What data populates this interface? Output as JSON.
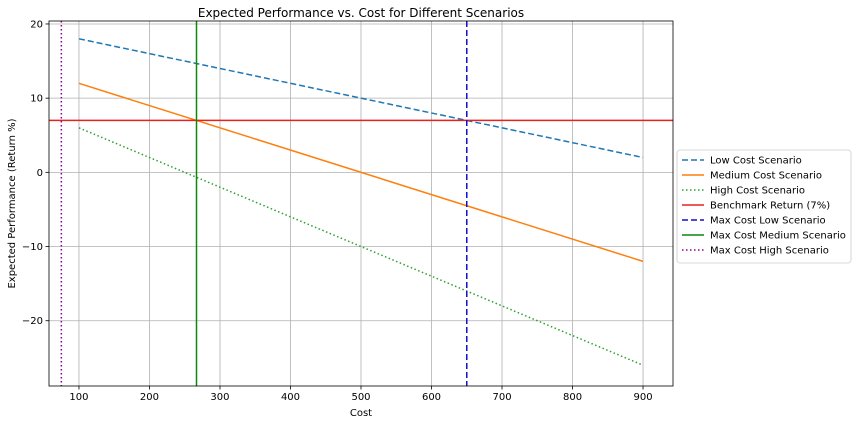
{
  "chart_data": {
    "type": "line",
    "title": "Expected Performance vs. Cost for Different Scenarios",
    "xlabel": "Cost",
    "ylabel": "Expected Performance (Return %)",
    "xlim": [
      57.5,
      942.5
    ],
    "ylim": [
      -28.8,
      20.4
    ],
    "xticks": [
      100,
      200,
      300,
      400,
      500,
      600,
      700,
      800,
      900
    ],
    "yticks": [
      -20,
      -10,
      0,
      10,
      20
    ],
    "ytick_labels": [
      "−20",
      "−10",
      "0",
      "10",
      "20"
    ],
    "grid": true,
    "legend_position": "right-outside",
    "series": [
      {
        "name": "Low Cost Scenario",
        "x": [
          100,
          900
        ],
        "y": [
          18,
          2
        ],
        "color": "#1f77b4",
        "style": "dashed"
      },
      {
        "name": "Medium Cost Scenario",
        "x": [
          100,
          900
        ],
        "y": [
          12,
          -12
        ],
        "color": "#ff7f0e",
        "style": "solid"
      },
      {
        "name": "High Cost Scenario",
        "x": [
          100,
          900
        ],
        "y": [
          6,
          -26
        ],
        "color": "#2ca02c",
        "style": "dotted"
      }
    ],
    "hlines": [
      {
        "name": "Benchmark Return (7%)",
        "y": 7,
        "color": "#e8201e",
        "style": "solid"
      }
    ],
    "vlines": [
      {
        "name": "Max Cost Low Scenario",
        "x": 650,
        "color": "#1010c8",
        "style": "dashed"
      },
      {
        "name": "Max Cost Medium Scenario",
        "x": 266.7,
        "color": "#0a8a0a",
        "style": "solid"
      },
      {
        "name": "Max Cost High Scenario",
        "x": 75,
        "color": "#8b008b",
        "style": "dotted"
      }
    ]
  }
}
